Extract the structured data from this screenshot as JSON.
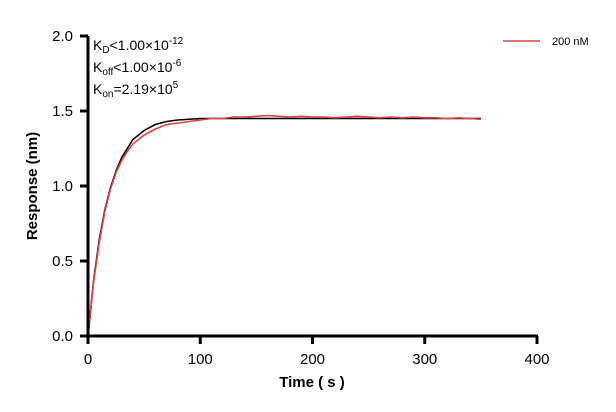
{
  "chart_data": {
    "type": "line",
    "xlabel": "Time ( s )",
    "ylabel": "Response (nm)",
    "xlim": [
      0,
      400
    ],
    "ylim": [
      0,
      2.0
    ],
    "xticks": [
      "0",
      "100",
      "200",
      "300",
      "400"
    ],
    "yticks": [
      "0.0",
      "0.5",
      "1.0",
      "1.5",
      "2.0"
    ],
    "grid": false,
    "legend": {
      "placement": "top-right",
      "entries": [
        "200 nM"
      ]
    },
    "annotations": {
      "kd": {
        "base": "K",
        "sub": "D",
        "rel": "<",
        "mant": "1.00×10",
        "exp": "-12"
      },
      "koff": {
        "base": "K",
        "sub": "off",
        "rel": "<",
        "mant": "1.00×10",
        "exp": "-6"
      },
      "kon": {
        "base": "K",
        "sub": "on",
        "rel": "=",
        "mant": "2.19×10",
        "exp": "5"
      }
    },
    "series": [
      {
        "name": "200 nM",
        "color": "#e0403f",
        "x": [
          0,
          5,
          10,
          15,
          20,
          25,
          30,
          35,
          40,
          45,
          50,
          60,
          70,
          80,
          90,
          100,
          110,
          120,
          130,
          140,
          150,
          160,
          170,
          180,
          190,
          200,
          210,
          220,
          230,
          240,
          250,
          260,
          270,
          280,
          290,
          300,
          310,
          320,
          330,
          340,
          350
        ],
        "y": [
          0,
          0.36,
          0.62,
          0.83,
          0.98,
          1.09,
          1.17,
          1.23,
          1.28,
          1.31,
          1.34,
          1.38,
          1.41,
          1.42,
          1.43,
          1.44,
          1.45,
          1.45,
          1.46,
          1.46,
          1.465,
          1.47,
          1.465,
          1.46,
          1.465,
          1.46,
          1.46,
          1.455,
          1.46,
          1.465,
          1.46,
          1.455,
          1.46,
          1.455,
          1.46,
          1.455,
          1.455,
          1.45,
          1.455,
          1.45,
          1.445
        ]
      },
      {
        "color": "#000000",
        "x": [
          0,
          5,
          10,
          15,
          20,
          25,
          30,
          40,
          50,
          60,
          70,
          80,
          100,
          150,
          200,
          250,
          300,
          350
        ],
        "y": [
          0,
          0.37,
          0.64,
          0.84,
          0.99,
          1.1,
          1.19,
          1.31,
          1.37,
          1.41,
          1.43,
          1.44,
          1.45,
          1.45,
          1.45,
          1.45,
          1.45,
          1.45
        ]
      }
    ]
  }
}
